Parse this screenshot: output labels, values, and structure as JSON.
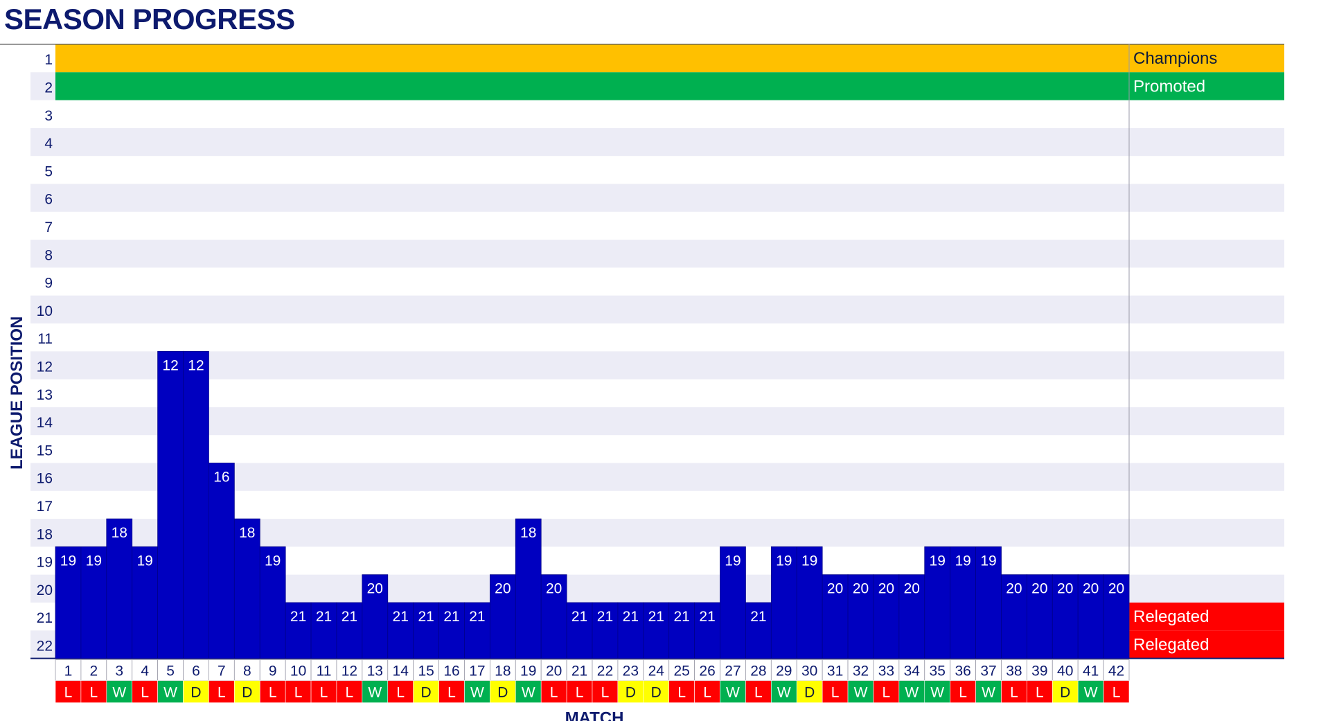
{
  "chart_data": {
    "type": "bar",
    "title": "SEASON PROGRESS",
    "xlabel": "MATCH",
    "ylabel": "LEAGUE POSITION",
    "y_axis": {
      "min": 1,
      "max": 22,
      "inverted": true,
      "ticks": [
        1,
        2,
        3,
        4,
        5,
        6,
        7,
        8,
        9,
        10,
        11,
        12,
        13,
        14,
        15,
        16,
        17,
        18,
        19,
        20,
        21,
        22
      ]
    },
    "categories": [
      1,
      2,
      3,
      4,
      5,
      6,
      7,
      8,
      9,
      10,
      11,
      12,
      13,
      14,
      15,
      16,
      17,
      18,
      19,
      20,
      21,
      22,
      23,
      24,
      25,
      26,
      27,
      28,
      29,
      30,
      31,
      32,
      33,
      34,
      35,
      36,
      37,
      38,
      39,
      40,
      41,
      42
    ],
    "values": [
      19,
      19,
      18,
      19,
      12,
      12,
      16,
      18,
      19,
      21,
      21,
      21,
      20,
      21,
      21,
      21,
      21,
      20,
      18,
      20,
      21,
      21,
      21,
      21,
      21,
      21,
      19,
      21,
      19,
      19,
      20,
      20,
      20,
      20,
      19,
      19,
      19,
      20,
      20,
      20,
      20,
      20
    ],
    "results": [
      "L",
      "L",
      "W",
      "L",
      "W",
      "D",
      "L",
      "D",
      "L",
      "L",
      "L",
      "L",
      "W",
      "L",
      "D",
      "L",
      "W",
      "D",
      "W",
      "L",
      "L",
      "L",
      "D",
      "D",
      "L",
      "L",
      "W",
      "L",
      "W",
      "D",
      "L",
      "W",
      "L",
      "W",
      "W",
      "L",
      "W",
      "L",
      "L",
      "D",
      "W",
      "L"
    ],
    "bands": [
      {
        "label": "Champions",
        "positions": [
          1
        ],
        "color": "#FFC000",
        "text_color": "#0d1a3a"
      },
      {
        "label": "Promoted",
        "positions": [
          2
        ],
        "color": "#00B050",
        "text_color": "#ffffff"
      },
      {
        "label": "Relegated",
        "positions": [
          21
        ],
        "color": "#FF0000",
        "text_color": "#ffffff"
      },
      {
        "label": "Relegated",
        "positions": [
          22
        ],
        "color": "#FF0000",
        "text_color": "#ffffff"
      }
    ],
    "colors": {
      "bar": "#0000C0",
      "bar_label": "#ffffff",
      "stripe": "#ECECF6",
      "axis_text": "#0d1a6e",
      "title": "#0d1a6e",
      "result_W": "#00B050",
      "result_L": "#FF0000",
      "result_D": "#FFFF00"
    },
    "grid": "alternating horizontal bands"
  }
}
